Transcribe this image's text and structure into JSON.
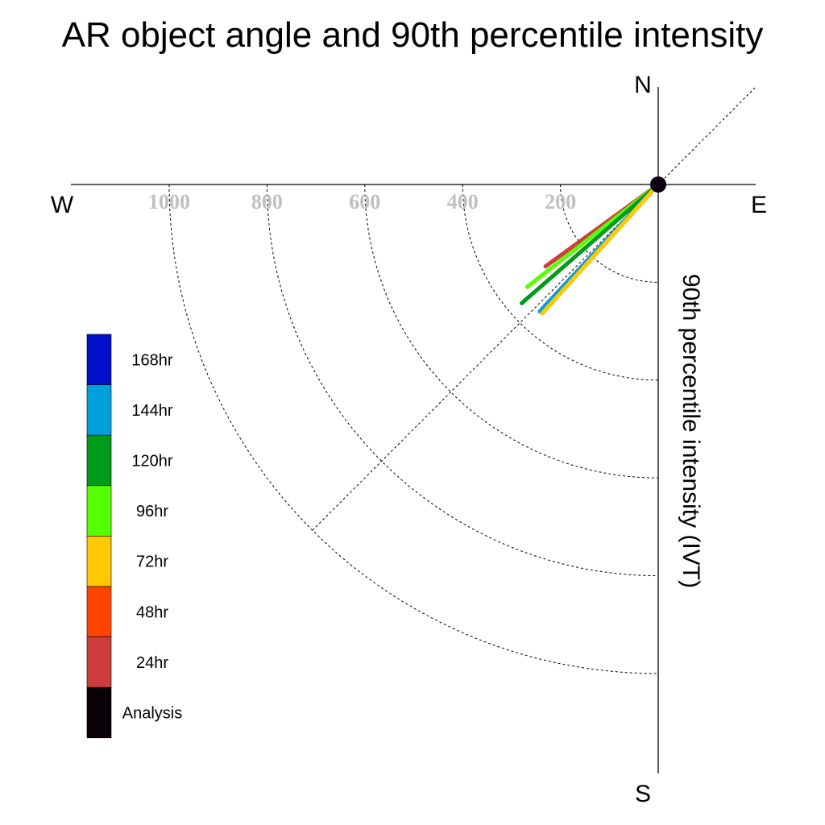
{
  "chart_data": {
    "type": "polar-line",
    "title": "AR object angle and 90th percentile intensity",
    "axis_label": "90th percentile intensity (IVT)",
    "compass": {
      "north": "N",
      "south": "S",
      "east": "E",
      "west": "W"
    },
    "rlim": [
      0,
      1000
    ],
    "rings": [
      200,
      400,
      600,
      800,
      1000
    ],
    "tick_labels": [
      "200",
      "400",
      "600",
      "800",
      "1000"
    ],
    "grid": true,
    "legend_position": "left",
    "series": [
      {
        "name": "24hr",
        "angle_deg": 36,
        "intensity": 285,
        "color": "#cc3d3d"
      },
      {
        "name": "96hr",
        "angle_deg": 38,
        "intensity": 340,
        "color": "#55ff00"
      },
      {
        "name": "120hr",
        "angle_deg": 41,
        "intensity": 370,
        "color": "#009b19"
      },
      {
        "name": "Analysis",
        "angle_deg": 47,
        "intensity": 345,
        "color": "#0a0008"
      },
      {
        "name": "168hr",
        "angle_deg": 47,
        "intensity": 350,
        "color": "#0010c8"
      },
      {
        "name": "144hr",
        "angle_deg": 47,
        "intensity": 355,
        "color": "#00a0dc"
      },
      {
        "name": "48hr",
        "angle_deg": 48,
        "intensity": 345,
        "color": "#ff4400"
      },
      {
        "name": "72hr",
        "angle_deg": 48,
        "intensity": 355,
        "color": "#ffc800"
      }
    ],
    "legend": [
      {
        "label": "168hr",
        "color": "#0010c8"
      },
      {
        "label": "144hr",
        "color": "#00a0dc"
      },
      {
        "label": "120hr",
        "color": "#009b19"
      },
      {
        "label": "96hr",
        "color": "#55ff00"
      },
      {
        "label": "72hr",
        "color": "#ffc800"
      },
      {
        "label": "48hr",
        "color": "#ff4400"
      },
      {
        "label": "24hr",
        "color": "#cc3d3d"
      },
      {
        "label": "Analysis",
        "color": "#0a0008"
      }
    ]
  }
}
